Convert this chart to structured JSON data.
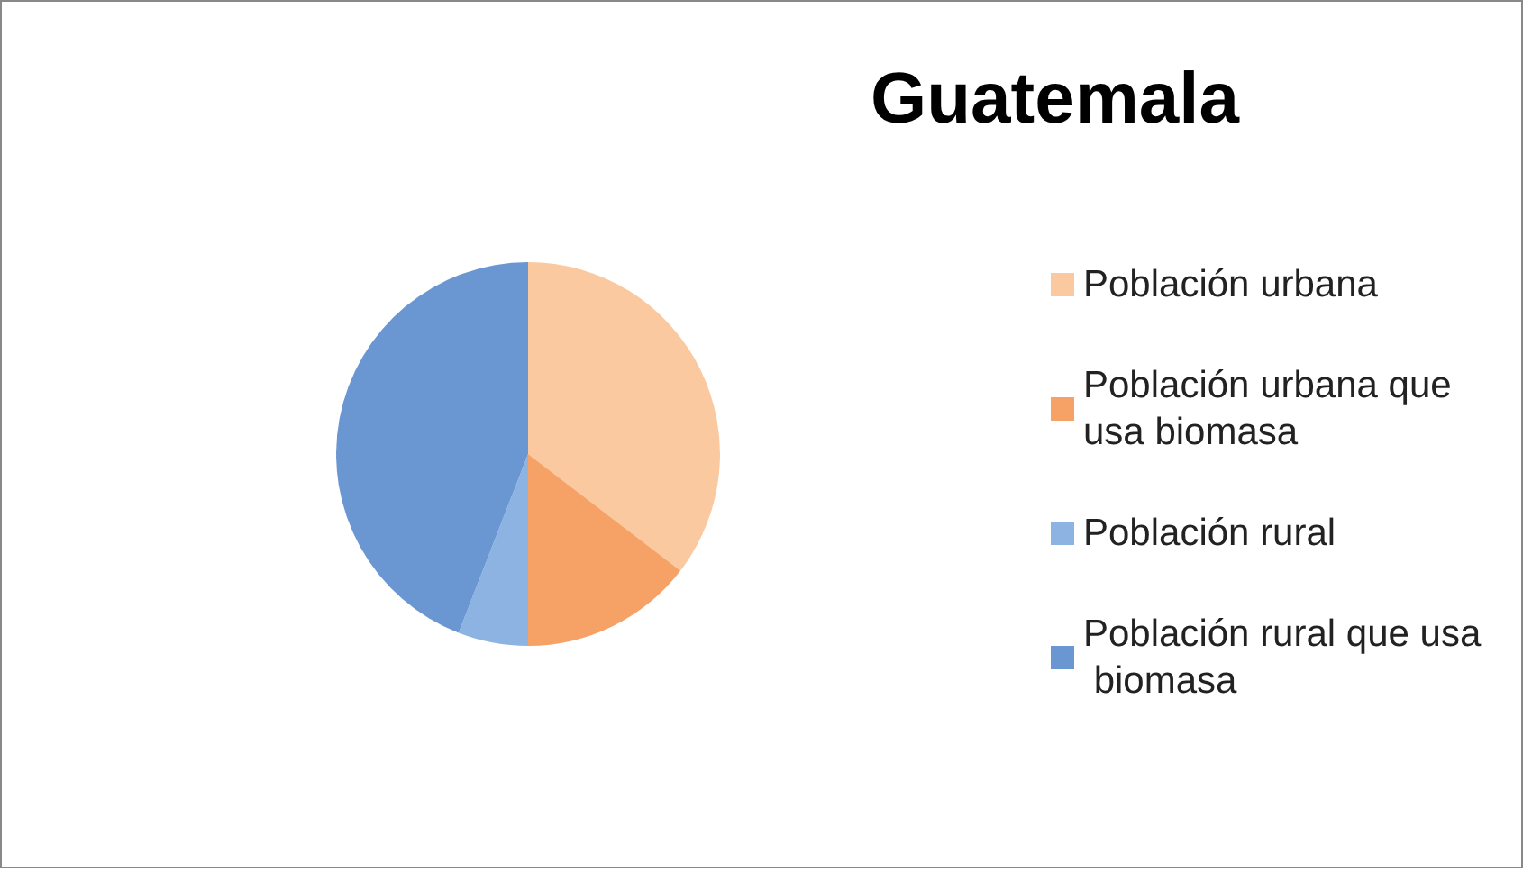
{
  "chart_data": {
    "type": "pie",
    "title": "Guatemala",
    "categories": [
      "Población urbana",
      "Población urbana que usa biomasa",
      "Población rural",
      "Población rural que usa biomasa"
    ],
    "values": [
      35.4,
      14.6,
      5.9,
      44.1
    ],
    "colors": [
      "#fac9a0",
      "#f6a266",
      "#8db3e2",
      "#6a96d2"
    ],
    "legend": "right"
  }
}
